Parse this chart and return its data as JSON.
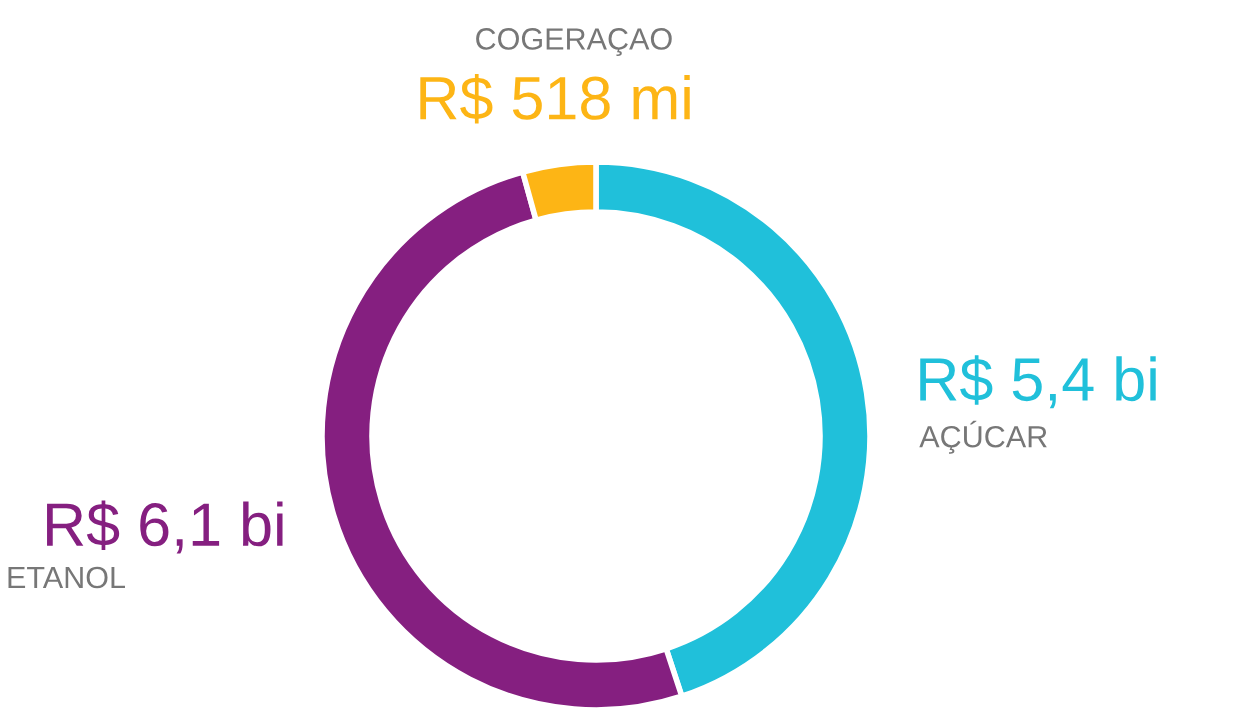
{
  "chart_data": {
    "type": "donut",
    "categories": [
      "AÇÚCAR",
      "ETANOL",
      "COGERAÇAO"
    ],
    "values": [
      5400,
      6100,
      518
    ],
    "value_labels": [
      "R$ 5,4 bi",
      "R$ 6,1 bi",
      "R$ 518 mi"
    ],
    "colors": [
      "#20c0da",
      "#851f80",
      "#fdb515"
    ],
    "legend": false
  }
}
